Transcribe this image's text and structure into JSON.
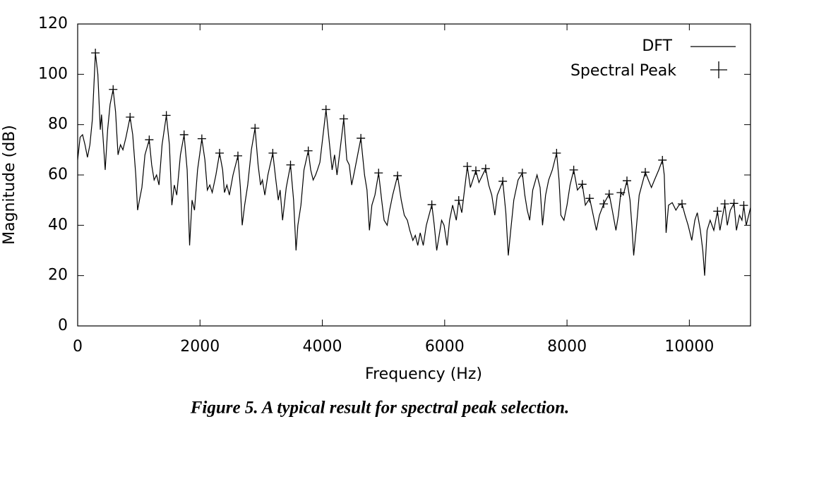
{
  "chart_data": {
    "type": "line",
    "x_label": "Frequency (Hz)",
    "y_label": "Magnitude (dB)",
    "caption": "Figure 5. A typical result for spectral peak selection.",
    "xlim": [
      0,
      11000
    ],
    "xticks": [
      0,
      2000,
      4000,
      6000,
      8000,
      10000
    ],
    "ylim": [
      0,
      120
    ],
    "yticks": [
      0,
      20,
      40,
      60,
      80,
      100,
      120
    ],
    "grid": false,
    "legend": "upper right",
    "series": [
      {
        "name": "DFT",
        "type": "line",
        "color": "#000000",
        "x": [
          0,
          40,
          80,
          120,
          160,
          200,
          240,
          290,
          330,
          370,
          390,
          420,
          450,
          490,
          530,
          580,
          620,
          660,
          700,
          740,
          790,
          857,
          900,
          950,
          980,
          1010,
          1050,
          1100,
          1170,
          1210,
          1250,
          1290,
          1330,
          1380,
          1450,
          1500,
          1540,
          1580,
          1620,
          1680,
          1740,
          1790,
          1830,
          1870,
          1910,
          1960,
          2030,
          2080,
          2120,
          2160,
          2200,
          2260,
          2320,
          2370,
          2400,
          2440,
          2480,
          2540,
          2620,
          2660,
          2690,
          2730,
          2780,
          2840,
          2900,
          2950,
          2990,
          3020,
          3060,
          3110,
          3190,
          3240,
          3280,
          3310,
          3350,
          3410,
          3480,
          3530,
          3570,
          3600,
          3650,
          3700,
          3770,
          3810,
          3850,
          3890,
          3920,
          3960,
          4060,
          4110,
          4160,
          4200,
          4240,
          4300,
          4350,
          4400,
          4440,
          4480,
          4530,
          4630,
          4690,
          4730,
          4770,
          4810,
          4860,
          4920,
          4970,
          5010,
          5060,
          5100,
          5150,
          5230,
          5290,
          5340,
          5390,
          5430,
          5480,
          5520,
          5560,
          5600,
          5650,
          5700,
          5790,
          5830,
          5870,
          5910,
          5950,
          5990,
          6040,
          6080,
          6130,
          6190,
          6230,
          6280,
          6370,
          6420,
          6510,
          6560,
          6670,
          6720,
          6770,
          6820,
          6860,
          6950,
          7000,
          7040,
          7080,
          7130,
          7200,
          7270,
          7310,
          7350,
          7390,
          7440,
          7510,
          7560,
          7600,
          7650,
          7700,
          7760,
          7830,
          7870,
          7900,
          7950,
          8000,
          8050,
          8110,
          8170,
          8250,
          8300,
          8370,
          8420,
          8480,
          8530,
          8600,
          8690,
          8740,
          8800,
          8840,
          8880,
          8920,
          8980,
          9030,
          9060,
          9090,
          9130,
          9180,
          9280,
          9330,
          9380,
          9430,
          9500,
          9560,
          9590,
          9620,
          9660,
          9720,
          9780,
          9830,
          9880,
          9930,
          9980,
          10040,
          10090,
          10130,
          10180,
          10220,
          10250,
          10290,
          10340,
          10400,
          10460,
          10500,
          10580,
          10620,
          10670,
          10730,
          10770,
          10820,
          10860,
          10890,
          10930,
          10970,
          11000
        ],
        "values": [
          66,
          75,
          76,
          72,
          67,
          72,
          82,
          108.5,
          100,
          78,
          84,
          73,
          62,
          78,
          88,
          94,
          85,
          68,
          72,
          70,
          75,
          83,
          76,
          60,
          46,
          50,
          55,
          68,
          74,
          64,
          58,
          60,
          56,
          72,
          83.7,
          72,
          48,
          56,
          52,
          68,
          76,
          62,
          32,
          50,
          46,
          62,
          74.4,
          66,
          54,
          56,
          53,
          60,
          68.7,
          62,
          53,
          56,
          52,
          60,
          67.6,
          55,
          40,
          48,
          56,
          70,
          78.6,
          64,
          56,
          58,
          52,
          60,
          68.7,
          58,
          50,
          54,
          42,
          55,
          64,
          50,
          30,
          40,
          48,
          62,
          69.6,
          62,
          58,
          60,
          62,
          65,
          86,
          74,
          62,
          68,
          60,
          72,
          82.3,
          66,
          64,
          56,
          62,
          74.6,
          60,
          54,
          38,
          48,
          52,
          60.8,
          50,
          42,
          40,
          46,
          52,
          59.7,
          50,
          44,
          42,
          38,
          34,
          36,
          32,
          37,
          32,
          40,
          48.2,
          40,
          30,
          36,
          42,
          40,
          32,
          42,
          48,
          42,
          49.9,
          45,
          63.4,
          55,
          61.7,
          57,
          62.5,
          56,
          52,
          44,
          52,
          57.5,
          45,
          28,
          38,
          50,
          58,
          60.8,
          52,
          46,
          42,
          54,
          60,
          55,
          40,
          52,
          58,
          62,
          68.7,
          58,
          44,
          42,
          48,
          56,
          62,
          54,
          56.3,
          48,
          50.7,
          45,
          38,
          44,
          48.5,
          52.4,
          46,
          38,
          44,
          53,
          52,
          57.7,
          50,
          40,
          28,
          38,
          52,
          61.1,
          58,
          55,
          58,
          62,
          65.9,
          60,
          37,
          48,
          49,
          46,
          48,
          48.5,
          44,
          40,
          34,
          42,
          45,
          38,
          30,
          20,
          38,
          42,
          38,
          45.6,
          38,
          48.5,
          40,
          46,
          48.7,
          38,
          44,
          42,
          47.9,
          40,
          44,
          47
        ]
      },
      {
        "name": "Spectral Peak",
        "type": "scatter",
        "color": "#000000",
        "x": [
          290,
          580,
          857,
          1170,
          1450,
          1740,
          2030,
          2320,
          2620,
          2900,
          3190,
          3480,
          3770,
          4060,
          4350,
          4630,
          4920,
          5230,
          5790,
          6230,
          6370,
          6510,
          6670,
          6950,
          7270,
          7830,
          8110,
          8250,
          8370,
          8600,
          8690,
          8880,
          8980,
          9280,
          9560,
          9880,
          10460,
          10580,
          10730,
          10890
        ],
        "values": [
          108.5,
          94,
          83,
          74,
          83.7,
          76,
          74.4,
          68.7,
          67.6,
          78.6,
          68.7,
          64,
          69.6,
          86,
          82.3,
          74.6,
          60.8,
          59.7,
          48.2,
          49.9,
          63.4,
          61.7,
          62.5,
          57.5,
          60.8,
          68.7,
          62,
          56.3,
          50.7,
          48.5,
          52.4,
          53,
          57.7,
          61.1,
          65.9,
          48.5,
          45.6,
          48.5,
          48.7,
          47.9
        ]
      }
    ]
  }
}
